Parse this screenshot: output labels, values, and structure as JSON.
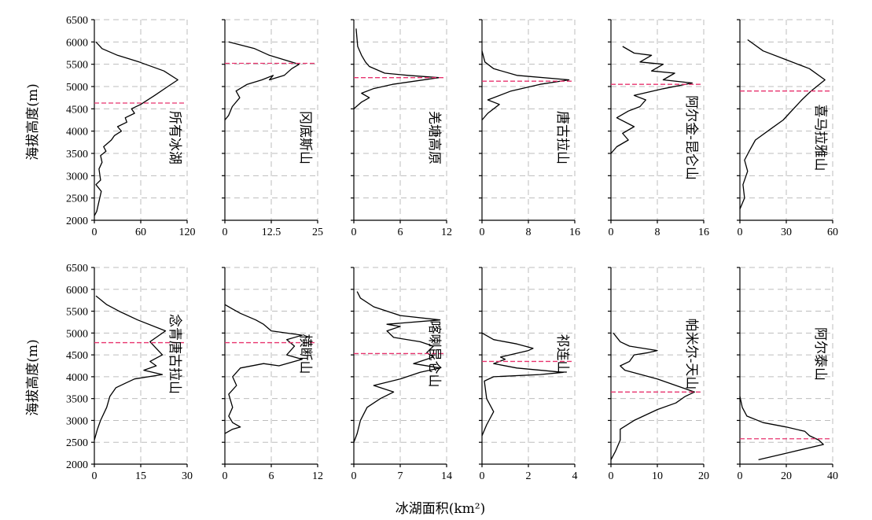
{
  "chart_data": {
    "type": "line",
    "orientation": "vertical-profile",
    "ylabel": "海拔高度(m)",
    "xlabel": "冰湖面积(km²)",
    "ylim": [
      2000,
      6500
    ],
    "yticks": [
      "2000",
      "2500",
      "3000",
      "3500",
      "4000",
      "4500",
      "5000",
      "5500",
      "6000",
      "6500"
    ],
    "grid": true,
    "colors": {
      "curve": "#000000",
      "median_line": "#e8336e",
      "grid": "#bdbdbd"
    },
    "panels": [
      {
        "label": "所有冰湖",
        "row": 0,
        "xlim": [
          0,
          120
        ],
        "xticks": [
          "0",
          "60",
          "120"
        ],
        "median_elevation": 4630,
        "profile": [
          [
            0,
            2100
          ],
          [
            3,
            2200
          ],
          [
            9,
            2650
          ],
          [
            2,
            2800
          ],
          [
            8,
            2900
          ],
          [
            6,
            3150
          ],
          [
            10,
            3300
          ],
          [
            8,
            3450
          ],
          [
            15,
            3550
          ],
          [
            12,
            3650
          ],
          [
            22,
            3800
          ],
          [
            26,
            3900
          ],
          [
            35,
            4000
          ],
          [
            30,
            4100
          ],
          [
            42,
            4200
          ],
          [
            40,
            4300
          ],
          [
            52,
            4400
          ],
          [
            48,
            4500
          ],
          [
            60,
            4600
          ],
          [
            78,
            4800
          ],
          [
            95,
            5000
          ],
          [
            108,
            5150
          ],
          [
            90,
            5350
          ],
          [
            58,
            5550
          ],
          [
            30,
            5700
          ],
          [
            10,
            5850
          ],
          [
            2,
            6000
          ]
        ]
      },
      {
        "label": "冈底斯山",
        "row": 0,
        "xlim": [
          0,
          25
        ],
        "xticks": [
          "0",
          "12.5",
          "25"
        ],
        "median_elevation": 5520,
        "profile": [
          [
            0,
            4250
          ],
          [
            1,
            4350
          ],
          [
            2,
            4550
          ],
          [
            4,
            4750
          ],
          [
            3,
            4900
          ],
          [
            6,
            5050
          ],
          [
            10,
            5150
          ],
          [
            13,
            5250
          ],
          [
            12,
            5150
          ],
          [
            16,
            5250
          ],
          [
            18,
            5400
          ],
          [
            20,
            5500
          ],
          [
            16,
            5600
          ],
          [
            12,
            5700
          ],
          [
            8,
            5850
          ],
          [
            1,
            6000
          ]
        ]
      },
      {
        "label": "羌塘高原",
        "row": 0,
        "xlim": [
          0,
          12
        ],
        "xticks": [
          "0",
          "6",
          "12"
        ],
        "median_elevation": 5200,
        "profile": [
          [
            0,
            4500
          ],
          [
            1,
            4650
          ],
          [
            2,
            4750
          ],
          [
            1,
            4850
          ],
          [
            2.5,
            4950
          ],
          [
            5,
            5050
          ],
          [
            11,
            5200
          ],
          [
            7,
            5250
          ],
          [
            4,
            5300
          ],
          [
            2,
            5450
          ],
          [
            1.5,
            5550
          ],
          [
            1,
            5700
          ],
          [
            0.5,
            5900
          ],
          [
            0.3,
            6300
          ]
        ]
      },
      {
        "label": "唐古拉山",
        "row": 0,
        "xlim": [
          0,
          16
        ],
        "xticks": [
          "0",
          "8",
          "16"
        ],
        "median_elevation": 5120,
        "profile": [
          [
            0,
            4250
          ],
          [
            1,
            4400
          ],
          [
            3,
            4600
          ],
          [
            1,
            4700
          ],
          [
            5,
            4900
          ],
          [
            10,
            5050
          ],
          [
            15,
            5150
          ],
          [
            6,
            5250
          ],
          [
            2,
            5400
          ],
          [
            0.5,
            5550
          ],
          [
            0,
            5800
          ]
        ]
      },
      {
        "label": "阿尔金-昆仑山",
        "row": 0,
        "xlim": [
          0,
          16
        ],
        "xticks": [
          "0",
          "8",
          "16"
        ],
        "median_elevation": 5050,
        "profile": [
          [
            0,
            3500
          ],
          [
            1,
            3650
          ],
          [
            3,
            3800
          ],
          [
            2,
            3950
          ],
          [
            4,
            4100
          ],
          [
            1,
            4300
          ],
          [
            3,
            4450
          ],
          [
            5,
            4550
          ],
          [
            6,
            4700
          ],
          [
            4,
            4800
          ],
          [
            9,
            4950
          ],
          [
            14,
            5080
          ],
          [
            9,
            5150
          ],
          [
            11,
            5300
          ],
          [
            7,
            5350
          ],
          [
            9,
            5500
          ],
          [
            5,
            5550
          ],
          [
            7,
            5700
          ],
          [
            4,
            5750
          ],
          [
            2,
            5900
          ]
        ]
      },
      {
        "label": "喜马拉雅山",
        "row": 0,
        "xlim": [
          0,
          60
        ],
        "xticks": [
          "0",
          "30",
          "60"
        ],
        "median_elevation": 4900,
        "profile": [
          [
            0,
            2250
          ],
          [
            3,
            2500
          ],
          [
            2,
            2800
          ],
          [
            5,
            3100
          ],
          [
            3,
            3350
          ],
          [
            6,
            3550
          ],
          [
            10,
            3800
          ],
          [
            20,
            4050
          ],
          [
            28,
            4250
          ],
          [
            32,
            4400
          ],
          [
            40,
            4700
          ],
          [
            46,
            4900
          ],
          [
            55,
            5150
          ],
          [
            45,
            5400
          ],
          [
            30,
            5600
          ],
          [
            15,
            5800
          ],
          [
            5,
            6050
          ]
        ]
      },
      {
        "label": "念青唐古拉山",
        "row": 1,
        "xlim": [
          0,
          30
        ],
        "xticks": [
          "0",
          "15",
          "30"
        ],
        "median_elevation": 4780,
        "profile": [
          [
            0,
            2550
          ],
          [
            1,
            2800
          ],
          [
            2,
            3000
          ],
          [
            4,
            3300
          ],
          [
            5,
            3550
          ],
          [
            7,
            3750
          ],
          [
            10,
            3850
          ],
          [
            13,
            3950
          ],
          [
            22,
            4050
          ],
          [
            16,
            4150
          ],
          [
            20,
            4250
          ],
          [
            18,
            4350
          ],
          [
            22,
            4500
          ],
          [
            20,
            4650
          ],
          [
            18,
            4800
          ],
          [
            23,
            5050
          ],
          [
            14,
            5300
          ],
          [
            8,
            5500
          ],
          [
            4,
            5650
          ],
          [
            0.5,
            5850
          ]
        ]
      },
      {
        "label": "横断山",
        "row": 1,
        "xlim": [
          0,
          12
        ],
        "xticks": [
          "0",
          "6",
          "12"
        ],
        "median_elevation": 4780,
        "profile": [
          [
            0,
            2700
          ],
          [
            1,
            2800
          ],
          [
            2,
            2850
          ],
          [
            1,
            2950
          ],
          [
            0.5,
            3100
          ],
          [
            1,
            3300
          ],
          [
            0.5,
            3600
          ],
          [
            1.5,
            3800
          ],
          [
            1,
            4000
          ],
          [
            2,
            4200
          ],
          [
            5,
            4300
          ],
          [
            7,
            4250
          ],
          [
            10,
            4400
          ],
          [
            8,
            4500
          ],
          [
            9,
            4700
          ],
          [
            8,
            4850
          ],
          [
            10,
            4950
          ],
          [
            6,
            5050
          ],
          [
            5,
            5200
          ],
          [
            4,
            5300
          ],
          [
            2,
            5450
          ],
          [
            1,
            5550
          ],
          [
            0,
            5650
          ]
        ]
      },
      {
        "label": "喀喇昆仑山",
        "row": 1,
        "xlim": [
          0,
          14
        ],
        "xticks": [
          "0",
          "7",
          "14"
        ],
        "median_elevation": 4530,
        "profile": [
          [
            0,
            2500
          ],
          [
            0.5,
            2700
          ],
          [
            1,
            3000
          ],
          [
            2,
            3300
          ],
          [
            4,
            3500
          ],
          [
            6,
            3650
          ],
          [
            3,
            3800
          ],
          [
            7,
            3950
          ],
          [
            10,
            4100
          ],
          [
            13,
            4200
          ],
          [
            9,
            4300
          ],
          [
            12,
            4450
          ],
          [
            11,
            4550
          ],
          [
            12,
            4700
          ],
          [
            10,
            4800
          ],
          [
            6,
            4900
          ],
          [
            5,
            5050
          ],
          [
            7,
            5150
          ],
          [
            5,
            5200
          ],
          [
            13,
            5300
          ],
          [
            7,
            5400
          ],
          [
            3,
            5600
          ],
          [
            1,
            5800
          ],
          [
            0.5,
            5950
          ]
        ]
      },
      {
        "label": "祁连山",
        "row": 1,
        "xlim": [
          0,
          4
        ],
        "xticks": [
          "0",
          "2",
          "4"
        ],
        "median_elevation": 4350,
        "profile": [
          [
            0,
            2650
          ],
          [
            0.2,
            2900
          ],
          [
            0.5,
            3200
          ],
          [
            0.2,
            3500
          ],
          [
            0.1,
            3900
          ],
          [
            0.5,
            4000
          ],
          [
            2.5,
            4050
          ],
          [
            3.5,
            4100
          ],
          [
            1.5,
            4200
          ],
          [
            0.5,
            4300
          ],
          [
            1,
            4400
          ],
          [
            0.8,
            4450
          ],
          [
            2,
            4600
          ],
          [
            2.2,
            4650
          ],
          [
            1.5,
            4750
          ],
          [
            0.5,
            4850
          ],
          [
            0,
            5000
          ]
        ]
      },
      {
        "label": "帕米尔-天山",
        "row": 1,
        "xlim": [
          0,
          20
        ],
        "xticks": [
          "0",
          "10",
          "20"
        ],
        "median_elevation": 3650,
        "profile": [
          [
            0,
            2100
          ],
          [
            1,
            2300
          ],
          [
            2,
            2550
          ],
          [
            2,
            2800
          ],
          [
            5,
            3000
          ],
          [
            8,
            3150
          ],
          [
            10,
            3250
          ],
          [
            14,
            3400
          ],
          [
            16,
            3550
          ],
          [
            18,
            3650
          ],
          [
            14,
            3800
          ],
          [
            10,
            3950
          ],
          [
            3,
            4150
          ],
          [
            2,
            4250
          ],
          [
            4,
            4350
          ],
          [
            5,
            4500
          ],
          [
            8,
            4550
          ],
          [
            10,
            4600
          ],
          [
            4,
            4700
          ],
          [
            2,
            4800
          ],
          [
            0.5,
            5000
          ]
        ]
      },
      {
        "label": "阿尔泰山",
        "row": 1,
        "xlim": [
          0,
          40
        ],
        "xticks": [
          "0",
          "20",
          "40"
        ],
        "median_elevation": 2580,
        "profile": [
          [
            8,
            2100
          ],
          [
            20,
            2250
          ],
          [
            36,
            2450
          ],
          [
            34,
            2550
          ],
          [
            30,
            2650
          ],
          [
            28,
            2750
          ],
          [
            20,
            2850
          ],
          [
            10,
            2950
          ],
          [
            3,
            3100
          ],
          [
            1,
            3300
          ],
          [
            0,
            3550
          ]
        ]
      }
    ]
  }
}
